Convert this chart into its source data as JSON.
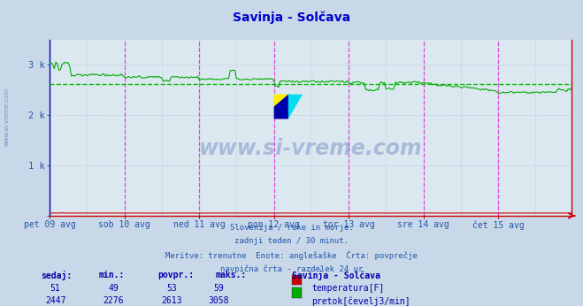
{
  "title": "Savinja - Solčava",
  "title_color": "#0000cc",
  "bg_color": "#c8d8e8",
  "plot_bg_color": "#dce8f0",
  "grid_dot_color": "#b0bcd0",
  "x_labels": [
    "pet 09 avg",
    "sob 10 avg",
    "ned 11 avg",
    "pon 12 avg",
    "tor 13 avg",
    "sre 14 avg",
    "čet 15 avg"
  ],
  "ylim": [
    0,
    3500
  ],
  "xlabel_color": "#2255aa",
  "ylabel_color": "#2255aa",
  "vline_color": "#dd44dd",
  "hline_avg_color": "#00bb00",
  "temp_color": "#cc0000",
  "flow_color": "#00aa00",
  "watermark_text": "www.si-vreme.com",
  "watermark_color": "#3355aa",
  "watermark_alpha": 0.3,
  "footer_lines": [
    "Slovenija / reke in morje.",
    "zadnji teden / 30 minut.",
    "Meritve: trenutne  Enote: anglešaške  Črta: povprečje",
    "navpična črta - razdelek 24 ur"
  ],
  "footer_color": "#2255aa",
  "legend_title": "Savinja - Solčava",
  "legend_items": [
    {
      "label": "temperatura[F]",
      "color": "#cc0000"
    },
    {
      "label": "pretok[čevelj3/min]",
      "color": "#00aa00"
    }
  ],
  "stats_headers": [
    "sedaj:",
    "min.:",
    "povpr.:",
    "maks.:"
  ],
  "stats_values": [
    [
      51,
      49,
      53,
      59
    ],
    [
      2447,
      2276,
      2613,
      3058
    ]
  ],
  "stats_color": "#0000aa",
  "n_points": 336,
  "flow_avg": 2613,
  "temp_avg": 53,
  "flow_min": 2276,
  "flow_max": 3058
}
